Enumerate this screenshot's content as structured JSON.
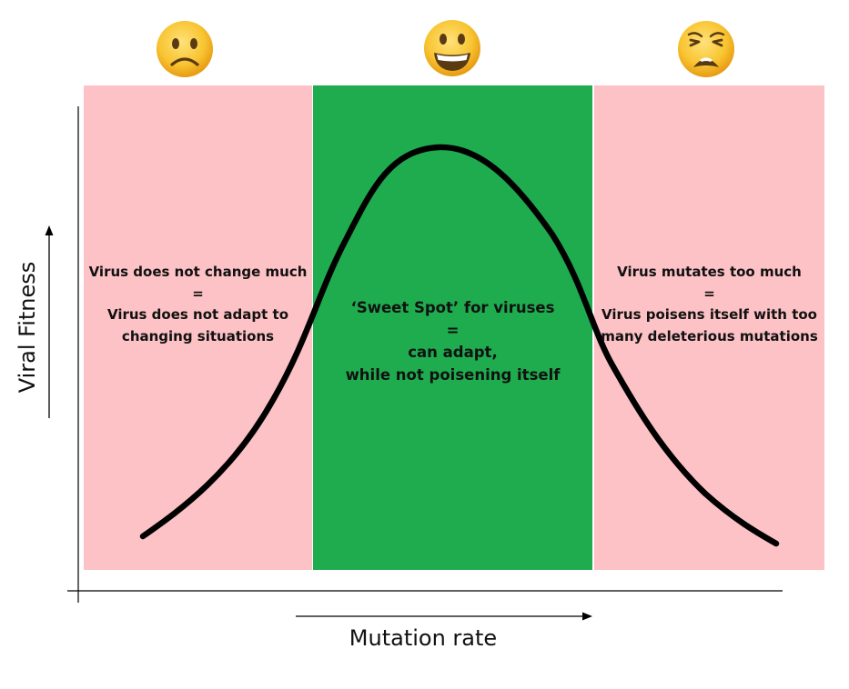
{
  "colors": {
    "low_zone": "#fdc2c5",
    "sweet_zone": "#1fac4f",
    "high_zone": "#fdc2c5",
    "curve": "#000000",
    "emoji_face": "#f6bd1e"
  },
  "faces": {
    "left": "frowning-face-icon",
    "middle": "grinning-face-icon",
    "right": "weary-face-icon"
  },
  "zones": {
    "low": {
      "line1": "Virus does not change much",
      "line2": "=",
      "line3": "Virus does not adapt to",
      "line4": "changing situations"
    },
    "sweet": {
      "line1": "‘Sweet Spot’ for viruses",
      "line2": "=",
      "line3": "can adapt,",
      "line4": "while not poisening itself"
    },
    "high": {
      "line1": "Virus mutates too much",
      "line2": "=",
      "line3": "Virus poisens itself with too",
      "line4": "many deleterious mutations"
    }
  },
  "axes": {
    "x_label": "Mutation rate",
    "y_label": "Viral Fitness"
  }
}
